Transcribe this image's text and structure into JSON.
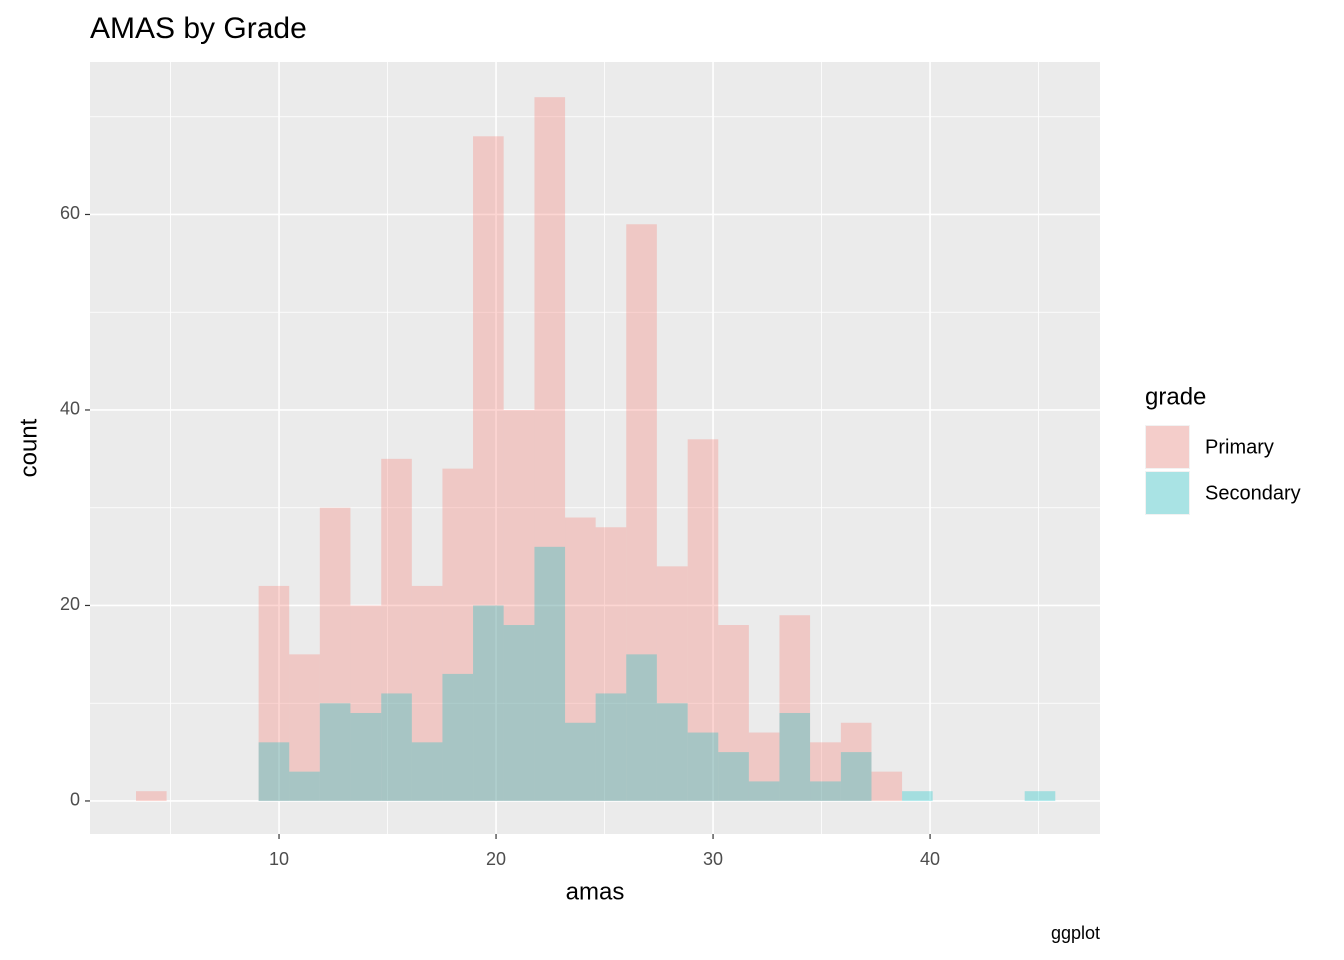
{
  "chart_data": {
    "type": "histogram",
    "title": "AMAS by Grade",
    "x_label": "amas",
    "y_label": "count",
    "caption": "ggplot",
    "legend_title": "grade",
    "legend_position": "right",
    "bins": [
      3.41,
      4.82,
      6.23,
      7.65,
      9.06,
      10.47,
      11.88,
      13.29,
      14.71,
      16.12,
      17.53,
      18.94,
      20.35,
      21.77,
      23.18,
      24.59,
      26.0,
      27.41,
      28.83,
      30.24,
      31.65,
      33.06,
      34.47,
      35.89,
      37.3,
      38.71,
      40.12,
      41.53,
      42.95,
      44.36,
      45.77
    ],
    "series": [
      {
        "name": "Primary",
        "color": "#F8766D",
        "values": [
          1,
          0,
          0,
          0,
          22,
          15,
          30,
          20,
          35,
          22,
          34,
          68,
          40,
          72,
          29,
          28,
          59,
          24,
          37,
          18,
          7,
          19,
          6,
          8,
          3,
          0,
          0,
          0,
          0,
          0
        ]
      },
      {
        "name": "Secondary",
        "color": "#00BFC4",
        "values": [
          0,
          0,
          0,
          0,
          6,
          3,
          10,
          9,
          11,
          6,
          13,
          20,
          18,
          26,
          8,
          11,
          15,
          10,
          7,
          5,
          2,
          9,
          2,
          5,
          0,
          1,
          0,
          0,
          0,
          1
        ]
      }
    ],
    "alpha": 0.3,
    "xlim": [
      1.29,
      47.83
    ],
    "xticks": [
      10,
      20,
      30,
      40
    ],
    "ylim": [
      -3.38,
      75.6
    ],
    "yticks": [
      0,
      20,
      40,
      60
    ],
    "grid": true,
    "minor_grid": true
  }
}
